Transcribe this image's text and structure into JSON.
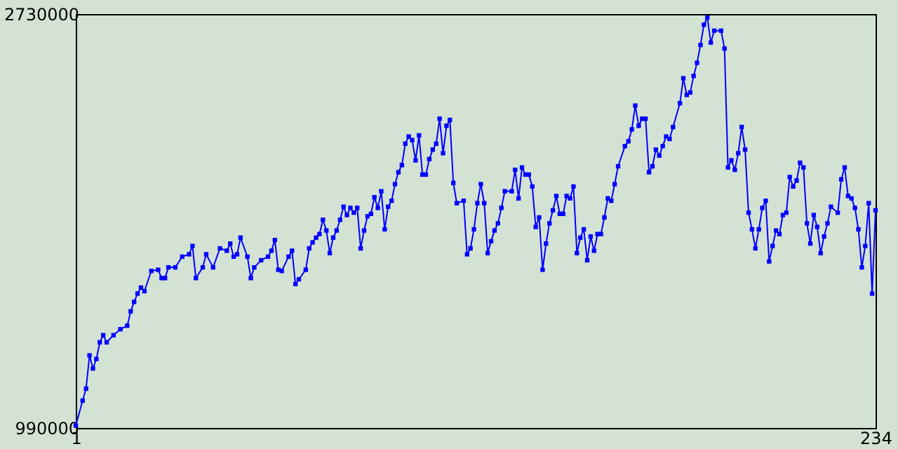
{
  "chart_data": {
    "type": "line",
    "x": [
      1,
      3,
      4,
      5,
      6,
      7,
      8,
      9,
      10,
      12,
      14,
      16,
      17,
      18,
      19,
      20,
      21,
      23,
      25,
      26,
      27,
      28,
      30,
      32,
      34,
      35,
      36,
      38,
      39,
      41,
      43,
      45,
      46,
      47,
      48,
      49,
      51,
      52,
      53,
      55,
      57,
      58,
      59,
      60,
      61,
      63,
      64,
      65,
      66,
      68,
      69,
      70,
      71,
      72,
      73,
      74,
      75,
      76,
      77,
      78,
      79,
      80,
      81,
      82,
      83,
      84,
      85,
      86,
      87,
      88,
      89,
      90,
      91,
      92,
      93,
      94,
      95,
      96,
      97,
      98,
      99,
      100,
      101,
      102,
      103,
      104,
      105,
      106,
      107,
      108,
      109,
      110,
      111,
      112,
      114,
      115,
      116,
      117,
      118,
      119,
      120,
      121,
      122,
      123,
      124,
      125,
      126,
      128,
      129,
      130,
      131,
      132,
      133,
      134,
      135,
      136,
      137,
      138,
      139,
      140,
      141,
      142,
      143,
      144,
      145,
      146,
      147,
      148,
      149,
      150,
      151,
      152,
      153,
      154,
      155,
      156,
      157,
      158,
      159,
      161,
      162,
      163,
      164,
      165,
      166,
      167,
      168,
      169,
      170,
      171,
      172,
      173,
      174,
      175,
      177,
      178,
      179,
      180,
      181,
      182,
      183,
      184,
      185,
      186,
      187,
      189,
      190,
      191,
      192,
      193,
      194,
      195,
      196,
      197,
      198,
      199,
      200,
      201,
      202,
      203,
      204,
      205,
      206,
      207,
      208,
      209,
      210,
      211,
      212,
      213,
      214,
      215,
      216,
      217,
      218,
      219,
      220,
      221,
      223,
      224,
      225,
      226,
      227,
      228,
      229,
      230,
      231,
      232,
      233,
      234
    ],
    "series": [
      {
        "color": "#0000ff",
        "values": [
          1000000,
          1105000,
          1155000,
          1295000,
          1240000,
          1280000,
          1350000,
          1380000,
          1350000,
          1380000,
          1405000,
          1420000,
          1480000,
          1520000,
          1555000,
          1580000,
          1565000,
          1650000,
          1655000,
          1620000,
          1620000,
          1665000,
          1665000,
          1710000,
          1720000,
          1755000,
          1620000,
          1665000,
          1720000,
          1665000,
          1745000,
          1735000,
          1765000,
          1710000,
          1720000,
          1790000,
          1710000,
          1620000,
          1665000,
          1695000,
          1710000,
          1735000,
          1780000,
          1655000,
          1650000,
          1710000,
          1735000,
          1595000,
          1615000,
          1655000,
          1745000,
          1770000,
          1790000,
          1805000,
          1865000,
          1820000,
          1725000,
          1790000,
          1820000,
          1865000,
          1920000,
          1885000,
          1915000,
          1895000,
          1915000,
          1745000,
          1820000,
          1880000,
          1890000,
          1960000,
          1915000,
          1985000,
          1825000,
          1920000,
          1945000,
          2015000,
          2065000,
          2095000,
          2185000,
          2215000,
          2200000,
          2115000,
          2220000,
          2055000,
          2055000,
          2120000,
          2160000,
          2185000,
          2290000,
          2145000,
          2260000,
          2285000,
          2020000,
          1935000,
          1945000,
          1720000,
          1745000,
          1825000,
          1935000,
          2015000,
          1935000,
          1725000,
          1775000,
          1820000,
          1850000,
          1915000,
          1985000,
          1985000,
          2075000,
          1955000,
          2085000,
          2055000,
          2055000,
          2005000,
          1835000,
          1875000,
          1655000,
          1765000,
          1850000,
          1905000,
          1965000,
          1890000,
          1890000,
          1965000,
          1955000,
          2005000,
          1725000,
          1790000,
          1825000,
          1695000,
          1795000,
          1735000,
          1805000,
          1805000,
          1875000,
          1955000,
          1945000,
          2015000,
          2090000,
          2175000,
          2195000,
          2245000,
          2345000,
          2260000,
          2290000,
          2290000,
          2065000,
          2090000,
          2160000,
          2135000,
          2175000,
          2215000,
          2205000,
          2255000,
          2355000,
          2460000,
          2390000,
          2400000,
          2470000,
          2525000,
          2600000,
          2685000,
          2715000,
          2610000,
          2660000,
          2660000,
          2585000,
          2085000,
          2115000,
          2075000,
          2145000,
          2255000,
          2160000,
          1895000,
          1825000,
          1745000,
          1825000,
          1915000,
          1945000,
          1690000,
          1755000,
          1820000,
          1805000,
          1885000,
          1895000,
          2045000,
          2005000,
          2030000,
          2105000,
          2085000,
          1850000,
          1765000,
          1885000,
          1835000,
          1725000,
          1795000,
          1850000,
          1920000,
          1895000,
          2035000,
          2085000,
          1965000,
          1955000,
          1915000,
          1825000,
          1665000,
          1755000,
          1935000,
          1555000,
          1905000
        ]
      }
    ],
    "xlim": [
      1,
      234
    ],
    "ylim": [
      990000,
      2730000
    ],
    "xticks": [
      1,
      234
    ],
    "yticks": [
      990000,
      2730000
    ],
    "grid": false,
    "marker": "square",
    "line_style": "solid"
  }
}
